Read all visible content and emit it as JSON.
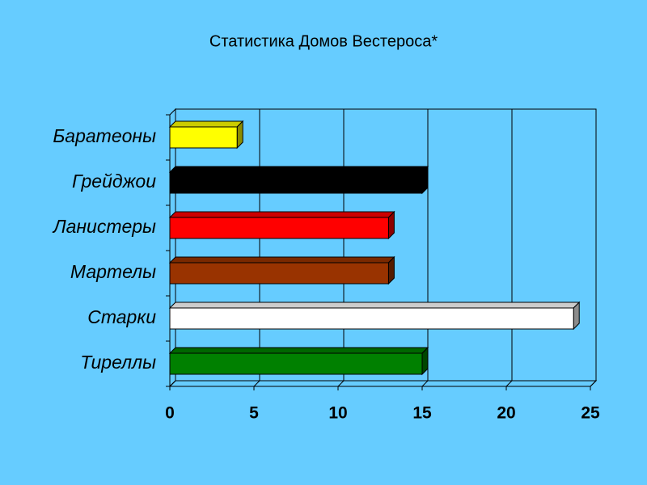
{
  "chart_data": {
    "type": "bar",
    "orientation": "horizontal",
    "title": "Статистика Домов Вестероса*",
    "categories": [
      "Баратеоны",
      "Грейджои",
      "Ланистеры",
      "Мартелы",
      "Старки",
      "Тиреллы"
    ],
    "values": [
      4,
      15,
      13,
      13,
      24,
      15
    ],
    "colors": [
      "#ffff00",
      "#000000",
      "#ff0000",
      "#993300",
      "#ffffff",
      "#008000"
    ],
    "xlim": [
      0,
      25
    ],
    "xticks": [
      0,
      5,
      10,
      15,
      20,
      25
    ],
    "grid": true
  }
}
